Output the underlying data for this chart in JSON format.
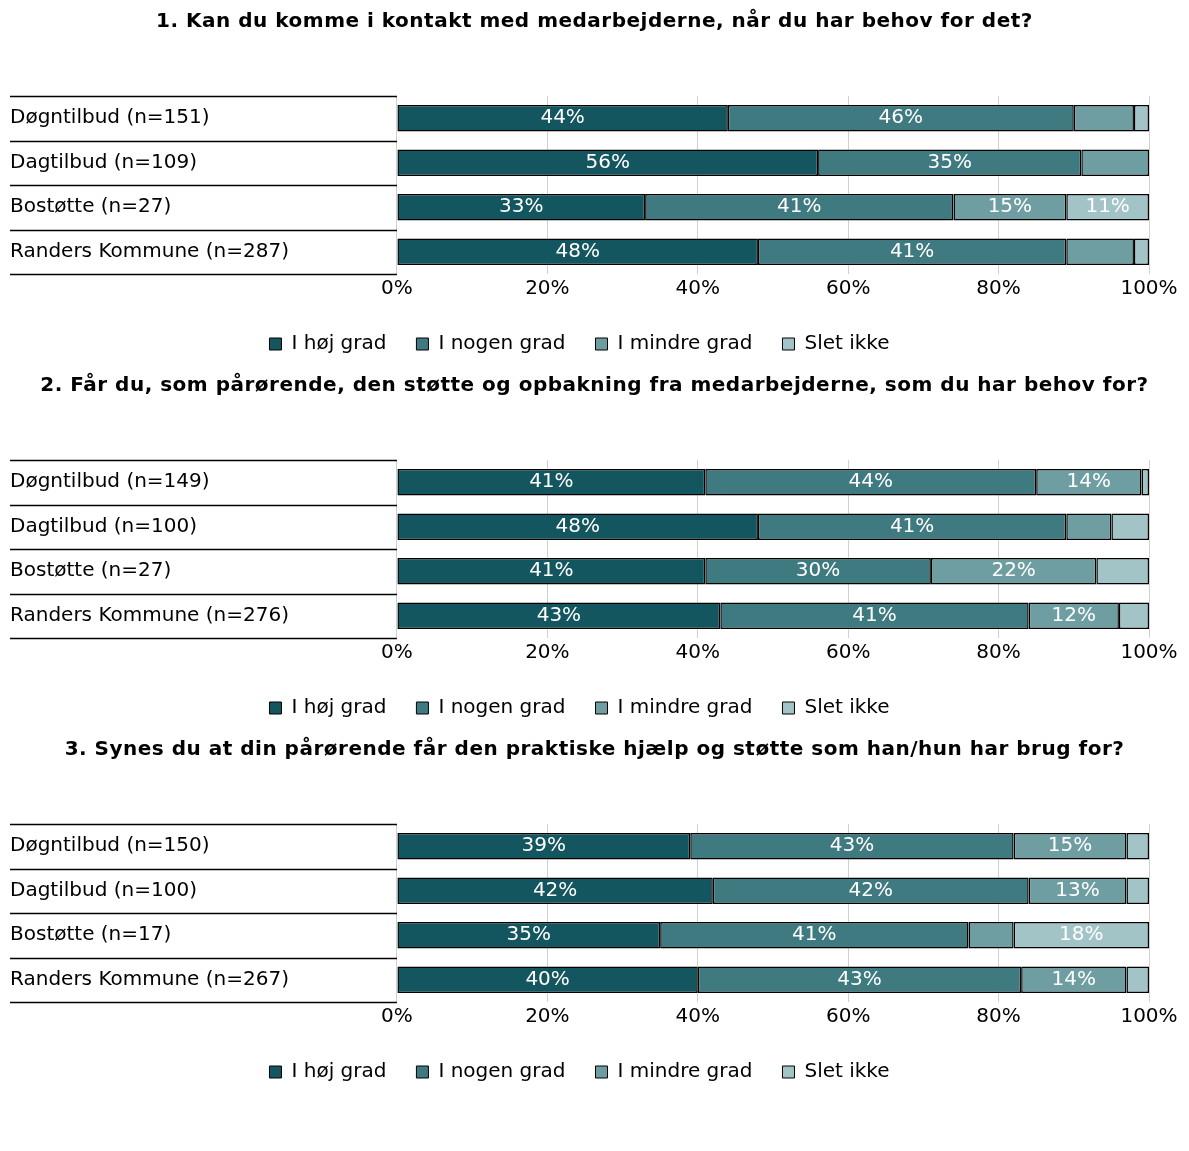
{
  "chart_data": [
    {
      "type": "bar",
      "orientation": "horizontal",
      "stacked": true,
      "title": "1. Kan du komme i kontakt med medarbejderne, når du har behov for det?",
      "categories": [
        "Døgntilbud (n=151)",
        "Dagtilbud (n=109)",
        "Bostøtte (n=27)",
        "Randers Kommune (n=287)"
      ],
      "series": [
        {
          "name": "I høj grad",
          "color": "#14565f",
          "values": [
            44,
            56,
            33,
            48
          ],
          "value_labels": [
            "44%",
            "56%",
            "33%",
            "48%"
          ]
        },
        {
          "name": "I nogen grad",
          "color": "#3f7a80",
          "values": [
            46,
            35,
            41,
            41
          ],
          "value_labels": [
            "46%",
            "35%",
            "41%",
            "41%"
          ]
        },
        {
          "name": "I mindre grad",
          "color": "#6e9ea2",
          "values": [
            8,
            9,
            15,
            9
          ],
          "value_labels": [
            null,
            null,
            "15%",
            null
          ]
        },
        {
          "name": "Slet ikke",
          "color": "#a3c4c7",
          "values": [
            2,
            0,
            11,
            2
          ],
          "value_labels": [
            null,
            null,
            "11%",
            null
          ]
        }
      ],
      "xlim": [
        0,
        100
      ],
      "xticks": [
        {
          "value": 0,
          "label": "0%"
        },
        {
          "value": 20,
          "label": "20%"
        },
        {
          "value": 40,
          "label": "40%"
        },
        {
          "value": 60,
          "label": "60%"
        },
        {
          "value": 80,
          "label": "80%"
        },
        {
          "value": 100,
          "label": "100%"
        }
      ],
      "grid": "x",
      "legend": "bottom"
    },
    {
      "type": "bar",
      "orientation": "horizontal",
      "stacked": true,
      "title": "2. Får du, som pårørende, den støtte og opbakning fra medarbejderne, som du har behov for?",
      "categories": [
        "Døgntilbud (n=149)",
        "Dagtilbud (n=100)",
        "Bostøtte (n=27)",
        "Randers Kommune (n=276)"
      ],
      "series": [
        {
          "name": "I høj grad",
          "color": "#14565f",
          "values": [
            41,
            48,
            41,
            43
          ],
          "value_labels": [
            "41%",
            "48%",
            "41%",
            "43%"
          ]
        },
        {
          "name": "I nogen grad",
          "color": "#3f7a80",
          "values": [
            44,
            41,
            30,
            41
          ],
          "value_labels": [
            "44%",
            "41%",
            "30%",
            "41%"
          ]
        },
        {
          "name": "I mindre grad",
          "color": "#6e9ea2",
          "values": [
            14,
            6,
            22,
            12
          ],
          "value_labels": [
            "14%",
            null,
            "22%",
            "12%"
          ]
        },
        {
          "name": "Slet ikke",
          "color": "#a3c4c7",
          "values": [
            1,
            5,
            7,
            4
          ],
          "value_labels": [
            null,
            null,
            null,
            null
          ]
        }
      ],
      "xlim": [
        0,
        100
      ],
      "xticks": [
        {
          "value": 0,
          "label": "0%"
        },
        {
          "value": 20,
          "label": "20%"
        },
        {
          "value": 40,
          "label": "40%"
        },
        {
          "value": 60,
          "label": "60%"
        },
        {
          "value": 80,
          "label": "80%"
        },
        {
          "value": 100,
          "label": "100%"
        }
      ],
      "grid": "x",
      "legend": "bottom"
    },
    {
      "type": "bar",
      "orientation": "horizontal",
      "stacked": true,
      "title": "3. Synes du at din pårørende får den praktiske hjælp og støtte som han/hun har brug for?",
      "categories": [
        "Døgntilbud (n=150)",
        "Dagtilbud (n=100)",
        "Bostøtte (n=17)",
        "Randers Kommune (n=267)"
      ],
      "series": [
        {
          "name": "I høj grad",
          "color": "#14565f",
          "values": [
            39,
            42,
            35,
            40
          ],
          "value_labels": [
            "39%",
            "42%",
            "35%",
            "40%"
          ]
        },
        {
          "name": "I nogen grad",
          "color": "#3f7a80",
          "values": [
            43,
            42,
            41,
            43
          ],
          "value_labels": [
            "43%",
            "42%",
            "41%",
            "43%"
          ]
        },
        {
          "name": "I mindre grad",
          "color": "#6e9ea2",
          "values": [
            15,
            13,
            6,
            14
          ],
          "value_labels": [
            "15%",
            "13%",
            null,
            "14%"
          ]
        },
        {
          "name": "Slet ikke",
          "color": "#a3c4c7",
          "values": [
            3,
            3,
            18,
            3
          ],
          "value_labels": [
            null,
            null,
            "18%",
            null
          ]
        }
      ],
      "xlim": [
        0,
        100
      ],
      "xticks": [
        {
          "value": 0,
          "label": "0%"
        },
        {
          "value": 20,
          "label": "20%"
        },
        {
          "value": 40,
          "label": "40%"
        },
        {
          "value": 60,
          "label": "60%"
        },
        {
          "value": 80,
          "label": "80%"
        },
        {
          "value": 100,
          "label": "100%"
        }
      ],
      "grid": "x",
      "legend": "bottom"
    }
  ]
}
